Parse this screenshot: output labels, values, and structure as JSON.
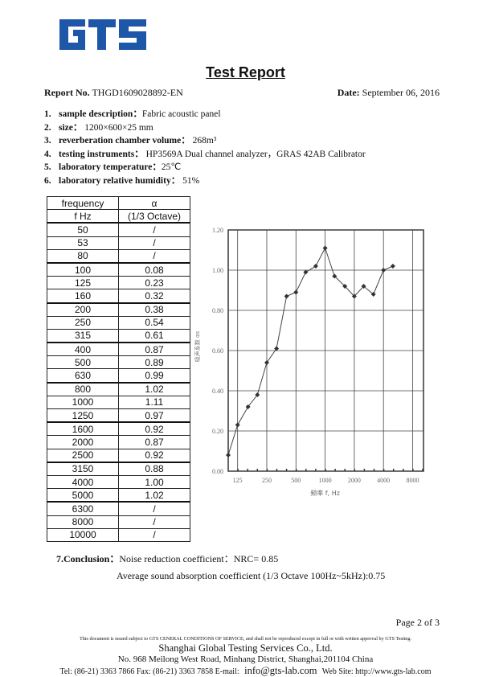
{
  "logo": {
    "text": "GTS",
    "color": "#1e56a8"
  },
  "title": "Test Report",
  "report_no": {
    "label": "Report No.",
    "value": "THGD1609028892-EN"
  },
  "date": {
    "label": "Date:",
    "value": "September  06,  2016"
  },
  "items": [
    {
      "n": "1.",
      "label": "sample description：",
      "value": "Fabric acoustic panel"
    },
    {
      "n": "2.",
      "label": "size：",
      "value": " 1200×600×25 mm"
    },
    {
      "n": "3.",
      "label": "reverberation chamber volume：",
      "value": " 268m³"
    },
    {
      "n": "4.",
      "label": "testing instruments：",
      "value": " HP3569A Dual channel analyzer，GRAS 42AB Calibrator"
    },
    {
      "n": "5.",
      "label": "laboratory temperature：",
      "value": "25℃"
    },
    {
      "n": "6.",
      "label": "laboratory relative humidity：",
      "value": " 51%"
    }
  ],
  "table": {
    "headers": [
      [
        "frequency",
        "α"
      ],
      [
        "f  Hz",
        "(1/3 Octave)"
      ]
    ],
    "rows": [
      [
        "50",
        "/"
      ],
      [
        "53",
        "/"
      ],
      [
        "80",
        "/"
      ],
      [
        "100",
        "0.08"
      ],
      [
        "125",
        "0.23"
      ],
      [
        "160",
        "0.32"
      ],
      [
        "200",
        "0.38"
      ],
      [
        "250",
        "0.54"
      ],
      [
        "315",
        "0.61"
      ],
      [
        "400",
        "0.87"
      ],
      [
        "500",
        "0.89"
      ],
      [
        "630",
        "0.99"
      ],
      [
        "800",
        "1.02"
      ],
      [
        "1000",
        "1.11"
      ],
      [
        "1250",
        "0.97"
      ],
      [
        "1600",
        "0.92"
      ],
      [
        "2000",
        "0.87"
      ],
      [
        "2500",
        "0.92"
      ],
      [
        "3150",
        "0.88"
      ],
      [
        "4000",
        "1.00"
      ],
      [
        "5000",
        "1.02"
      ],
      [
        "6300",
        "/"
      ],
      [
        "8000",
        "/"
      ],
      [
        "10000",
        "/"
      ]
    ]
  },
  "chart_data": {
    "type": "line",
    "xlabel": "频率 f, Hz",
    "ylabel": "吸声系数 αs",
    "x_scale": "log",
    "x_ticks": [
      "125",
      "250",
      "500",
      "1000",
      "2000",
      "4000",
      "8000"
    ],
    "y_ticks": [
      "0.00",
      "0.20",
      "0.40",
      "0.60",
      "0.80",
      "1.00",
      "1.20"
    ],
    "ylim": [
      0,
      1.2
    ],
    "grid": true,
    "x": [
      100,
      125,
      160,
      200,
      250,
      315,
      400,
      500,
      630,
      800,
      1000,
      1250,
      1600,
      2000,
      2500,
      3150,
      4000,
      5000
    ],
    "y": [
      0.08,
      0.23,
      0.32,
      0.38,
      0.54,
      0.61,
      0.87,
      0.89,
      0.99,
      1.02,
      1.11,
      0.97,
      0.92,
      0.87,
      0.92,
      0.88,
      1.0,
      1.02
    ]
  },
  "conclusion": {
    "label": "7.Conclusion：",
    "line1": "Noise reduction coefficient：NRC= 0.85",
    "line2": "Average sound absorption coefficient (1/3 Octave 100Hz~5kHz):0.75"
  },
  "page": "Page 2 of 3",
  "footer": {
    "notice": "This document is issued subject to GTS CENERAL CONDITIONS OF SERVICE, and shall not be reproduced except in full or with written approval by GTS Testing.",
    "company": "Shanghai Global Testing Services Co., Ltd.",
    "address": "No. 968 Meilong West Road, Minhang District, Shanghai,201104 China",
    "contact_a": "Tel: (86-21) 3363 7866    Fax: (86-21) 3363 7858    E-mail: ",
    "email": "info@gts-lab.com",
    "contact_b": "    Web Site: http://www.gts-lab.com"
  }
}
